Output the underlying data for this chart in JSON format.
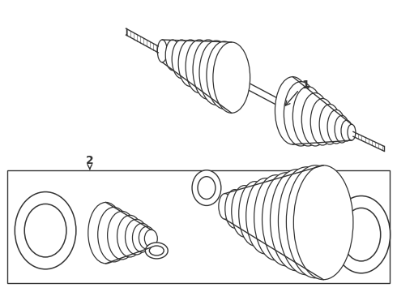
{
  "bg_color": "#ffffff",
  "line_color": "#333333",
  "line_width": 1.0,
  "fig_width": 4.9,
  "fig_height": 3.6,
  "dpi": 100
}
